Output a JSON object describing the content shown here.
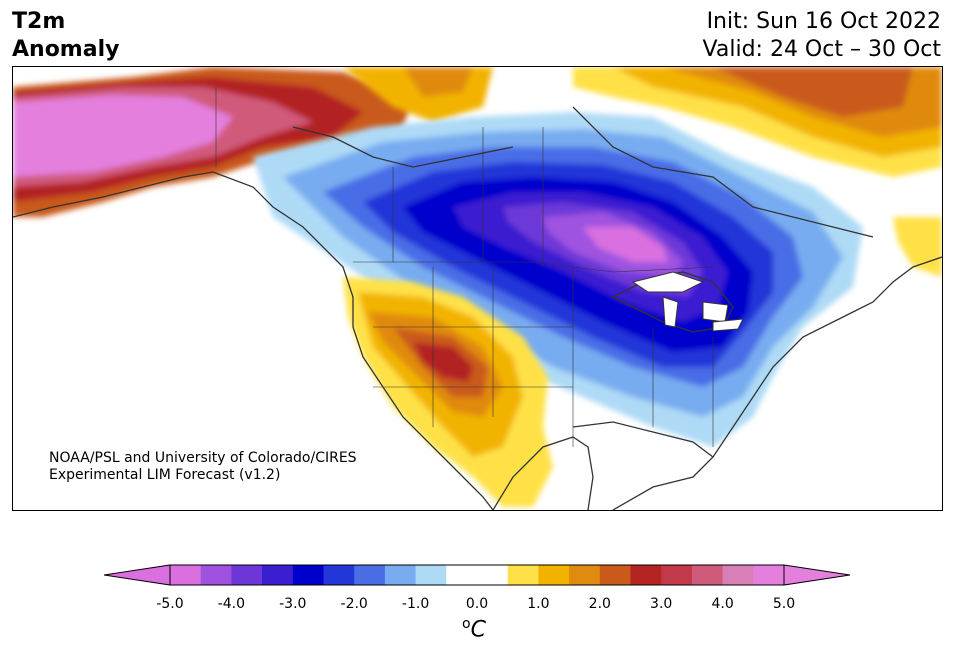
{
  "title": {
    "line1": "T2m",
    "line2": "Anomaly"
  },
  "info": {
    "init": "Init: Sun 16 Oct 2022",
    "valid": "Valid: 24 Oct – 30 Oct"
  },
  "credit": {
    "line1": "NOAA/PSL and University of Colorado/CIRES",
    "line2": "Experimental LIM Forecast (v1.2)"
  },
  "colorbar": {
    "unit_base": "C",
    "unit_prefix": "o",
    "tick_labels": [
      "-5.0",
      "-4.0",
      "-3.0",
      "-2.0",
      "-1.0",
      "0.0",
      "1.0",
      "2.0",
      "3.0",
      "4.0",
      "5.0"
    ],
    "colors": [
      "#da6fe0",
      "#9f52e0",
      "#6d37d8",
      "#3a1fd0",
      "#0000cc",
      "#2336d8",
      "#4a6de6",
      "#78acf0",
      "#aedaf6",
      "#ffffff",
      "#ffffff",
      "#ffe147",
      "#f2b300",
      "#e08a10",
      "#c95a1a",
      "#b32422",
      "#c23a4a",
      "#d05a7a",
      "#d97fb8",
      "#e47fde"
    ],
    "extend_low_color": "#da6fe0",
    "extend_high_color": "#e47fde"
  }
}
